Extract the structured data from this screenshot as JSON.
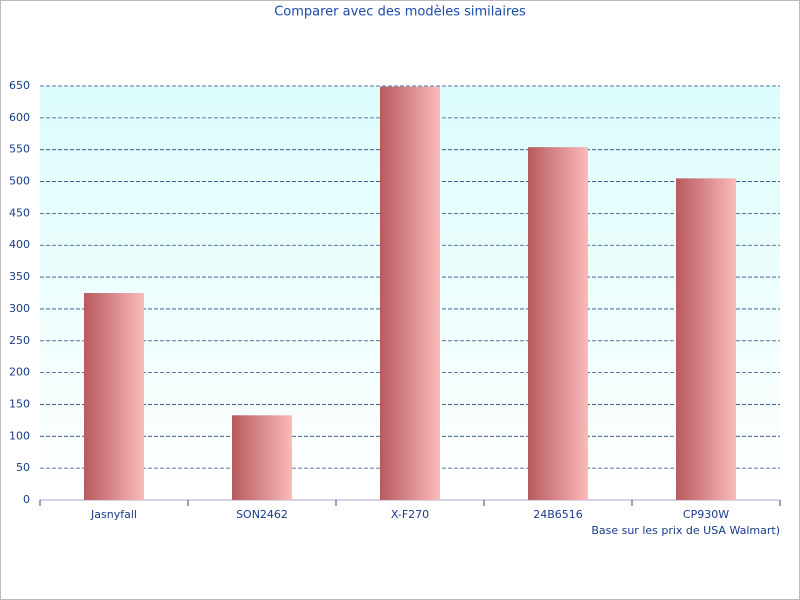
{
  "chart_data": {
    "type": "bar",
    "title": "Comparer avec des modèles similaires",
    "x_label": "Base sur les prix de USA Walmart)",
    "categories": [
      "Jasnyfall",
      "SON2462",
      "X-F270",
      "24B6516",
      "CP930W"
    ],
    "values": [
      325,
      133,
      649,
      554,
      505
    ],
    "color": "#b85a5e",
    "ylim": [
      0,
      650
    ],
    "yticks": [
      0,
      50,
      100,
      150,
      200,
      250,
      300,
      350,
      400,
      450,
      500,
      550,
      600,
      650
    ],
    "grid": true
  }
}
